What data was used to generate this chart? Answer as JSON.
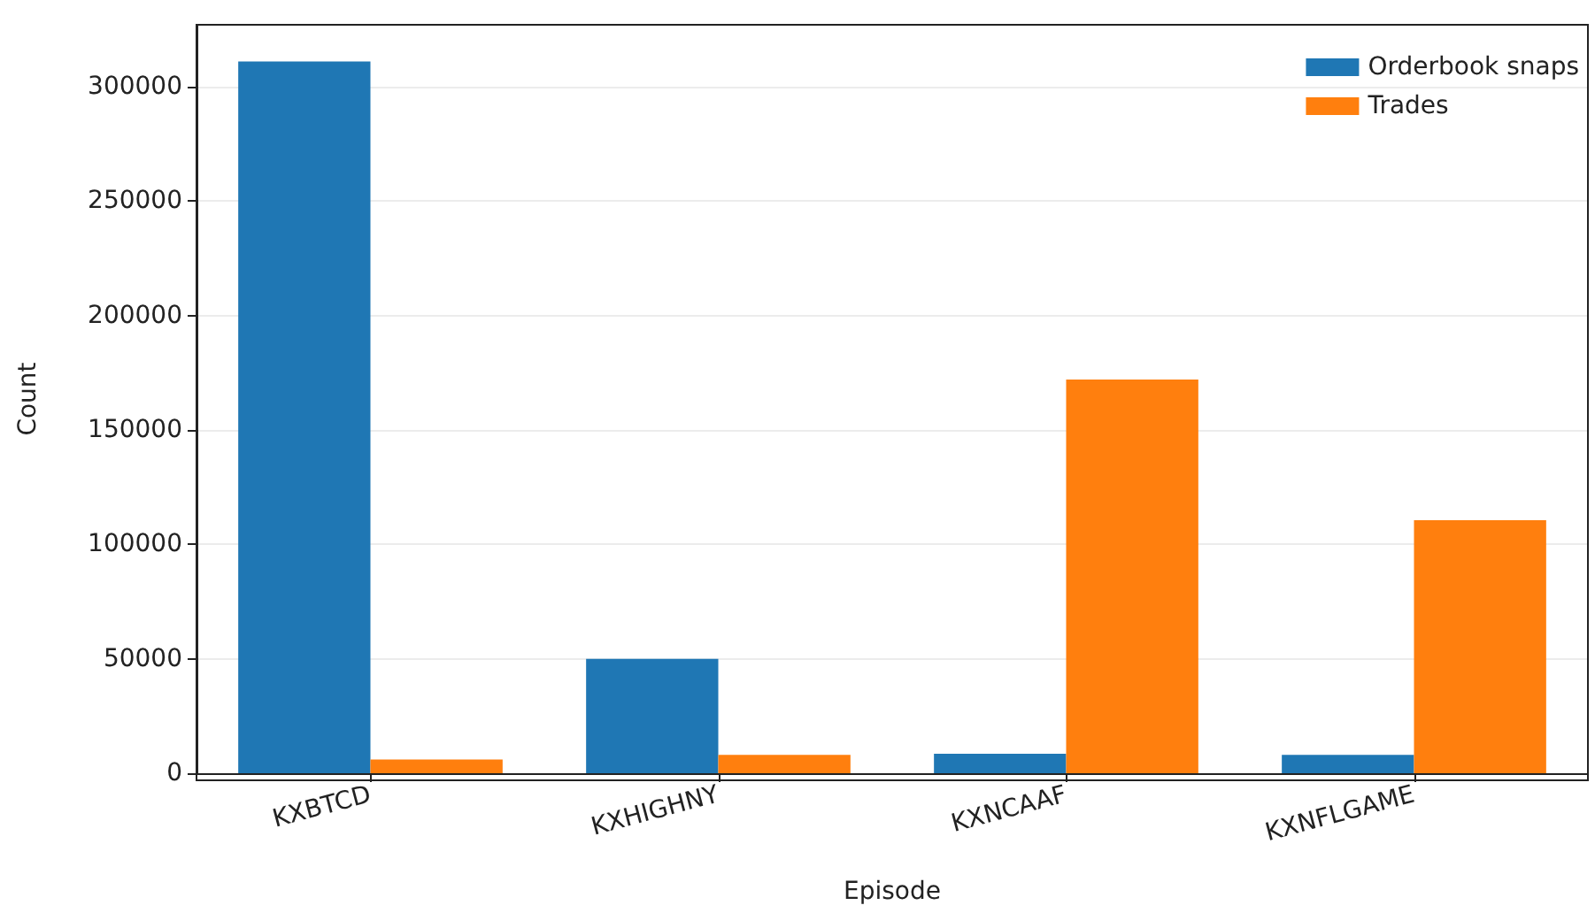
{
  "chart_data": {
    "type": "bar",
    "xlabel": "Episode",
    "ylabel": "Count",
    "categories": [
      "KXBTCD",
      "KXHIGHNY",
      "KXNCAAF",
      "KXNFLGAME"
    ],
    "series": [
      {
        "name": "Orderbook snaps",
        "color": "#1f77b4",
        "values": [
          311000,
          50000,
          8500,
          8000
        ]
      },
      {
        "name": "Trades",
        "color": "#ff7f0e",
        "values": [
          6000,
          8000,
          172000,
          110500
        ]
      }
    ],
    "ylim": [
      0,
      327000
    ],
    "yticks": [
      0,
      50000,
      100000,
      150000,
      200000,
      250000,
      300000
    ],
    "grid": "y",
    "legend": "top right"
  }
}
